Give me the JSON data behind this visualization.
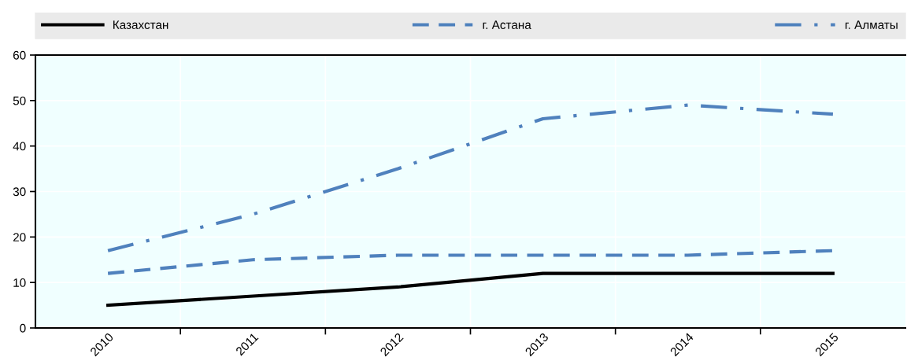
{
  "chart_data": {
    "type": "line",
    "categories": [
      "2010",
      "2011",
      "2012",
      "2013",
      "2014",
      "2015"
    ],
    "series": [
      {
        "name": "Казахстан",
        "color": "#000000",
        "line_style": "solid",
        "values": [
          5,
          7,
          9,
          12,
          12,
          12
        ]
      },
      {
        "name": "г. Астана",
        "color": "#4f81bd",
        "line_style": "dashed",
        "values": [
          12,
          15,
          16,
          16,
          16,
          17
        ]
      },
      {
        "name": "г. Алматы",
        "color": "#4f81bd",
        "line_style": "dashdot",
        "values": [
          17,
          25,
          35,
          46,
          49,
          47
        ]
      }
    ],
    "ylim": [
      0,
      60
    ],
    "yticks": [
      0,
      10,
      20,
      30,
      40,
      50,
      60
    ],
    "grid": true,
    "legend": "top"
  }
}
